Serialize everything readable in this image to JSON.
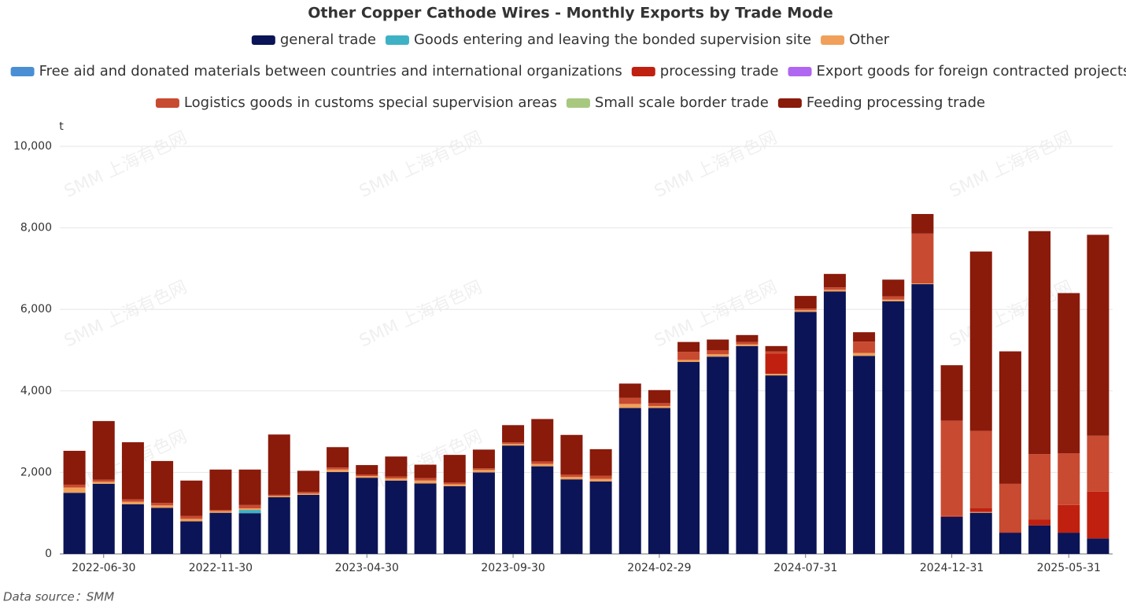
{
  "chart_data": {
    "type": "bar",
    "stacked": true,
    "title": "Other Copper Cathode Wires - Monthly Exports by Trade Mode",
    "y_unit": "t",
    "source": "Data source：SMM",
    "watermark": "SMM 上海有色网",
    "categories": [
      null,
      "2022-06-30",
      null,
      null,
      null,
      "2022-11-30",
      null,
      null,
      null,
      null,
      "2023-04-30",
      null,
      null,
      null,
      null,
      "2023-09-30",
      null,
      null,
      null,
      null,
      "2024-02-29",
      null,
      null,
      null,
      null,
      "2024-07-31",
      null,
      null,
      null,
      null,
      "2024-12-31",
      null,
      null,
      null,
      "2025-05-31",
      null
    ],
    "ylim": [
      0,
      10000
    ],
    "yticks": [
      0,
      {
        "value": 2000,
        "label": "2,000"
      },
      {
        "value": 4000,
        "label": "4,000"
      },
      {
        "value": 6000,
        "label": "6,000"
      },
      {
        "value": 8000,
        "label": "8,000"
      },
      {
        "value": 10000,
        "label": "10,000"
      }
    ],
    "grid": true,
    "legend_position": "top",
    "series": [
      {
        "name": "general trade",
        "color": "#0b1456",
        "values": [
          1500,
          1720,
          1220,
          1130,
          800,
          1010,
          1000,
          1390,
          1450,
          2010,
          1870,
          1800,
          1730,
          1660,
          2000,
          2660,
          2150,
          1830,
          1780,
          3580,
          3580,
          4710,
          4840,
          5100,
          4380,
          5940,
          6440,
          4860,
          6200,
          6620,
          910,
          1010,
          520,
          700,
          520,
          380
        ]
      },
      {
        "name": "Goods entering and leaving the bonded supervision site",
        "color": "#3fb1c5",
        "values": [
          0,
          0,
          0,
          0,
          0,
          0,
          80,
          0,
          0,
          0,
          0,
          0,
          0,
          0,
          0,
          0,
          0,
          0,
          0,
          0,
          0,
          0,
          0,
          0,
          0,
          0,
          0,
          0,
          0,
          0,
          0,
          0,
          0,
          0,
          0,
          0
        ]
      },
      {
        "name": "Other",
        "color": "#f0a05a",
        "values": [
          130,
          50,
          60,
          60,
          60,
          40,
          40,
          30,
          30,
          60,
          40,
          50,
          70,
          50,
          60,
          40,
          60,
          60,
          60,
          100,
          50,
          50,
          60,
          40,
          40,
          40,
          40,
          70,
          40,
          20,
          0,
          20,
          0,
          0,
          0,
          0
        ]
      },
      {
        "name": "Free aid and donated materials between countries and international organizations",
        "color": "#4a8fd4",
        "values": [
          0,
          0,
          0,
          0,
          0,
          0,
          0,
          0,
          0,
          0,
          0,
          0,
          0,
          0,
          0,
          0,
          0,
          0,
          0,
          0,
          0,
          0,
          0,
          0,
          0,
          0,
          0,
          0,
          0,
          0,
          0,
          0,
          0,
          0,
          0,
          0
        ]
      },
      {
        "name": "processing trade",
        "color": "#c0200f",
        "values": [
          0,
          0,
          0,
          0,
          0,
          0,
          0,
          0,
          0,
          0,
          0,
          0,
          0,
          0,
          0,
          0,
          0,
          0,
          0,
          0,
          0,
          0,
          0,
          0,
          500,
          0,
          0,
          0,
          0,
          0,
          20,
          90,
          10,
          140,
          680,
          1150
        ]
      },
      {
        "name": "Export goods for foreign contracted projects",
        "color": "#b066f0",
        "values": [
          0,
          0,
          0,
          0,
          0,
          0,
          0,
          0,
          0,
          0,
          0,
          0,
          0,
          0,
          0,
          0,
          0,
          0,
          0,
          0,
          0,
          0,
          0,
          0,
          0,
          0,
          0,
          0,
          0,
          0,
          0,
          0,
          0,
          0,
          0,
          0
        ]
      },
      {
        "name": "Logistics goods in customs special supervision areas",
        "color": "#c84a30",
        "values": [
          70,
          50,
          60,
          60,
          70,
          30,
          80,
          30,
          40,
          50,
          40,
          50,
          60,
          40,
          40,
          40,
          60,
          60,
          80,
          150,
          70,
          200,
          100,
          60,
          50,
          40,
          60,
          280,
          80,
          1220,
          2340,
          1900,
          1190,
          1610,
          1270,
          1370
        ]
      },
      {
        "name": "Small scale border trade",
        "color": "#a8c880",
        "values": [
          0,
          0,
          0,
          0,
          0,
          0,
          0,
          0,
          0,
          0,
          0,
          0,
          0,
          0,
          0,
          0,
          0,
          0,
          0,
          0,
          0,
          0,
          0,
          0,
          0,
          0,
          0,
          0,
          0,
          0,
          0,
          0,
          0,
          0,
          0,
          0
        ]
      },
      {
        "name": "Feeding processing trade",
        "color": "#8a1a0a",
        "values": [
          830,
          1440,
          1400,
          1030,
          870,
          990,
          870,
          1480,
          520,
          500,
          230,
          490,
          330,
          680,
          460,
          420,
          1040,
          970,
          650,
          350,
          320,
          240,
          260,
          170,
          130,
          310,
          330,
          230,
          410,
          480,
          1360,
          4400,
          3250,
          5470,
          3930,
          4930
        ]
      }
    ]
  }
}
